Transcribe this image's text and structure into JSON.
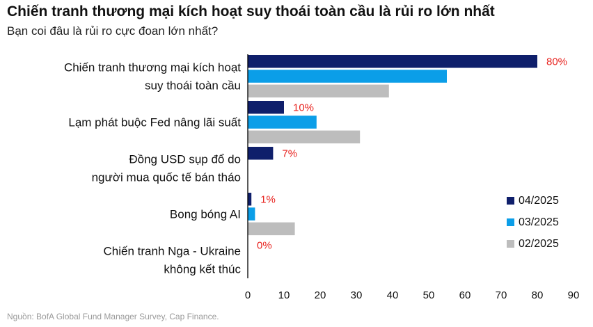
{
  "title": "Chiến tranh thương mại kích hoạt suy thoái toàn cầu là rủi ro lớn nhất",
  "subtitle": "Bạn coi đâu là rủi ro cực đoan lớn nhất?",
  "source": "Nguồn: BofA Global Fund Manager Survey, Cap Finance.",
  "colors": {
    "04/2025": "#0f1f6b",
    "03/2025": "#0b9ee8",
    "02/2025": "#bdbdbd",
    "data_label": "#e8231f",
    "axis": "#000000"
  },
  "chart_data": {
    "type": "bar",
    "orientation": "horizontal",
    "title": "Chiến tranh thương mại kích hoạt suy thoái toàn cầu là rủi ro lớn nhất",
    "subtitle": "Bạn coi đâu là rủi ro cực đoan lớn nhất?",
    "categories": [
      [
        "Chiến tranh thương mại kích hoạt",
        "suy thoái toàn cầu"
      ],
      [
        "Lạm phát buộc Fed nâng lãi suất"
      ],
      [
        "Đồng USD sụp đổ do",
        "người mua quốc tế bán tháo"
      ],
      [
        "Bong bóng AI"
      ],
      [
        "Chiến tranh Nga - Ukraine",
        "không kết thúc"
      ]
    ],
    "series": [
      {
        "name": "04/2025",
        "values": [
          80,
          10,
          7,
          1,
          0
        ]
      },
      {
        "name": "03/2025",
        "values": [
          55,
          19,
          0,
          2,
          0
        ]
      },
      {
        "name": "02/2025",
        "values": [
          39,
          31,
          0,
          13,
          0
        ]
      }
    ],
    "data_labels": [
      "80%",
      "10%",
      "7%",
      "1%",
      "0%"
    ],
    "xlim": [
      0,
      90
    ],
    "xticks": [
      0,
      10,
      20,
      30,
      40,
      50,
      60,
      70,
      80,
      90
    ],
    "legend_position": "right",
    "grid": false
  }
}
